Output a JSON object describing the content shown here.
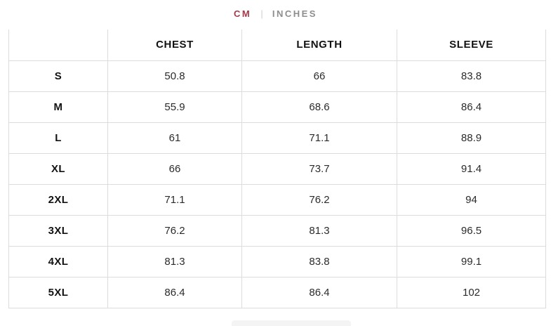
{
  "unit_toggle": {
    "cm_label": "CM",
    "separator": "|",
    "inches_label": "INCHES",
    "active_unit": "CM",
    "active_color": "#a43a49",
    "inactive_color": "#8e8e8e",
    "separator_color": "#cfcfcf"
  },
  "table": {
    "columns": [
      "",
      "CHEST",
      "LENGTH",
      "SLEEVE"
    ],
    "rows": [
      {
        "size": "S",
        "values": [
          "50.8",
          "66",
          "83.8"
        ]
      },
      {
        "size": "M",
        "values": [
          "55.9",
          "68.6",
          "86.4"
        ]
      },
      {
        "size": "L",
        "values": [
          "61",
          "71.1",
          "88.9"
        ]
      },
      {
        "size": "XL",
        "values": [
          "66",
          "73.7",
          "91.4"
        ]
      },
      {
        "size": "2XL",
        "values": [
          "71.1",
          "76.2",
          "94"
        ]
      },
      {
        "size": "3XL",
        "values": [
          "76.2",
          "81.3",
          "96.5"
        ]
      },
      {
        "size": "4XL",
        "values": [
          "81.3",
          "83.8",
          "99.1"
        ]
      },
      {
        "size": "5XL",
        "values": [
          "86.4",
          "86.4",
          "102"
        ]
      }
    ]
  }
}
